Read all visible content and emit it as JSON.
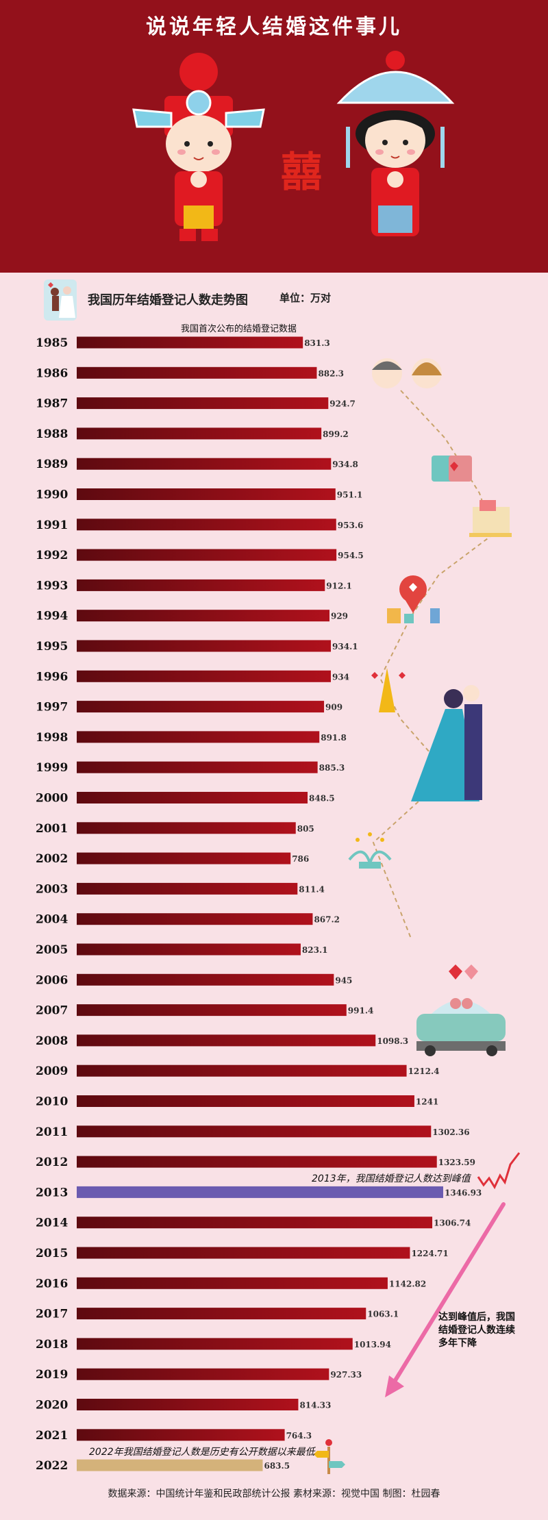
{
  "hero": {
    "title": "说说年轻人结婚这件事儿",
    "symbol": "囍"
  },
  "chart_head": {
    "title": "我国历年结婚登记人数走势图",
    "unit": "单位：万对"
  },
  "annotations": {
    "first": "我国首次公布的结婚登记数据",
    "peak": "2013年，我国结婚登记人数达到峰值",
    "decline": "达到峰值后，我国结婚登记人数连续多年下降",
    "low": "2022年我国结婚登记人数是历史有公开数据以来最低"
  },
  "colors": {
    "bar": "#b0111c",
    "bar_dark": "#5e0a10",
    "peak_bar": "#6b5bb0",
    "low_bar": "#d4b27a",
    "hero_bg": "#93111b"
  },
  "icons": [
    "groom-icon",
    "bride-icon",
    "double-happiness-icon",
    "wedding-proposal-icon",
    "couple-heads-icon",
    "coffee-cups-icon",
    "gift-icon",
    "location-heart-icon",
    "eiffel-tower-icon",
    "wedding-couple-icon",
    "fountain-icon",
    "wedding-car-icon",
    "trend-line-icon",
    "signpost-icon"
  ],
  "chart_data": {
    "type": "bar",
    "orientation": "horizontal",
    "title": "我国历年结婚登记人数走势图",
    "unit": "单位：万对",
    "categories": [
      "1985",
      "1986",
      "1987",
      "1988",
      "1989",
      "1990",
      "1991",
      "1992",
      "1993",
      "1994",
      "1995",
      "1996",
      "1997",
      "1998",
      "1999",
      "2000",
      "2001",
      "2002",
      "2003",
      "2004",
      "2005",
      "2006",
      "2007",
      "2008",
      "2009",
      "2010",
      "2011",
      "2012",
      "2013",
      "2014",
      "2015",
      "2016",
      "2017",
      "2018",
      "2019",
      "2020",
      "2021",
      "2022"
    ],
    "values": [
      831.3,
      882.3,
      924.7,
      899.2,
      934.8,
      951.1,
      953.6,
      954.5,
      912.1,
      929,
      934.1,
      934,
      909,
      891.8,
      885.3,
      848.5,
      805,
      786,
      811.4,
      867.2,
      823.1,
      945,
      991.4,
      1098.3,
      1212.4,
      1241,
      1302.36,
      1323.59,
      1346.93,
      1306.74,
      1224.71,
      1142.82,
      1063.1,
      1013.94,
      927.33,
      814.33,
      764.3,
      683.5
    ],
    "value_labels": [
      "831.3",
      "882.3",
      "924.7",
      "899.2",
      "934.8",
      "951.1",
      "953.6",
      "954.5",
      "912.1",
      "929",
      "934.1",
      "934",
      "909",
      "891.8",
      "885.3",
      "848.5",
      "805",
      "786",
      "811.4",
      "867.2",
      "823.1",
      "945",
      "991.4",
      "1098.3",
      "1212.4",
      "1241",
      "1302.36",
      "1323.59",
      "1346.93",
      "1306.74",
      "1224.71",
      "1142.82",
      "1063.1",
      "1013.94",
      "927.33",
      "814.33",
      "764.3",
      "683.5"
    ],
    "highlight": {
      "max": "2013",
      "min": "2022"
    },
    "grid": false
  },
  "footer": "数据来源：中国统计年鉴和民政部统计公报    素材来源：视觉中国    制图：杜园春"
}
